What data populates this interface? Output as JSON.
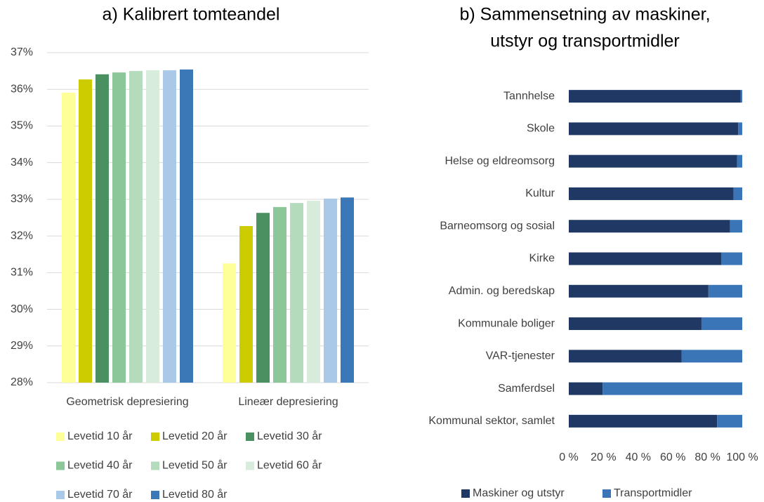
{
  "chart_data": [
    {
      "type": "bar",
      "title": "a) Kalibrert tomteandel",
      "categories": [
        "Geometrisk depresiering",
        "Lineær depresiering"
      ],
      "series": [
        {
          "name": "Levetid 10 år",
          "color": "#ffff99",
          "values": [
            35.91,
            31.25
          ]
        },
        {
          "name": "Levetid 20 år",
          "color": "#cccc00",
          "values": [
            36.27,
            32.27
          ]
        },
        {
          "name": "Levetid 30 år",
          "color": "#4a9060",
          "values": [
            36.41,
            32.63
          ]
        },
        {
          "name": "Levetid 40 år",
          "color": "#8cc79a",
          "values": [
            36.46,
            32.79
          ]
        },
        {
          "name": "Levetid 50 år",
          "color": "#b4dcbc",
          "values": [
            36.5,
            32.9
          ]
        },
        {
          "name": "Levetid 60 år",
          "color": "#d8ecdc",
          "values": [
            36.52,
            32.96
          ]
        },
        {
          "name": "Levetid 70 år",
          "color": "#aac8e8",
          "values": [
            36.52,
            33.02
          ]
        },
        {
          "name": "Levetid 80 år",
          "color": "#3a78b8",
          "values": [
            36.54,
            33.05
          ]
        }
      ],
      "ylim": [
        28,
        37
      ],
      "yticks": [
        {
          "value": 28,
          "label": "28%"
        },
        {
          "value": 29,
          "label": "29%"
        },
        {
          "value": 30,
          "label": "30%"
        },
        {
          "value": 31,
          "label": "31%"
        },
        {
          "value": 32,
          "label": "32%"
        },
        {
          "value": 33,
          "label": "33%"
        },
        {
          "value": 34,
          "label": "34%"
        },
        {
          "value": 35,
          "label": "35%"
        },
        {
          "value": 36,
          "label": "36%"
        },
        {
          "value": 37,
          "label": "37%"
        }
      ],
      "grid": true,
      "legend": "bottom"
    },
    {
      "type": "stacked_barh",
      "title": [
        "b) Sammensetning av maskiner,",
        "utstyr og transportmidler"
      ],
      "categories": [
        "Tannhelse",
        "Skole",
        "Helse og eldreomsorg",
        "Kultur",
        "Barneomsorg og sosial",
        "Kirke",
        "Admin. og beredskap",
        "Kommunale boliger",
        "VAR-tjenester",
        "Samferdsel",
        "Kommunal sektor, samlet"
      ],
      "series": [
        {
          "name": "Maskiner og utstyr",
          "color": "#1f3864",
          "values": [
            99,
            97.6,
            97,
            95,
            93,
            88,
            80.5,
            76.5,
            65,
            19.5,
            85.5
          ]
        },
        {
          "name": "Transportmidler",
          "color": "#3a75b8",
          "values": [
            1,
            2.4,
            3,
            5,
            7,
            12,
            19.5,
            23.5,
            35,
            80.5,
            14.5
          ]
        }
      ],
      "xlim": [
        0,
        100
      ],
      "xticks": [
        {
          "value": 0,
          "label": "0 %"
        },
        {
          "value": 20,
          "label": "20 %"
        },
        {
          "value": 40,
          "label": "40 %"
        },
        {
          "value": 60,
          "label": "60 %"
        },
        {
          "value": 80,
          "label": "80 %"
        },
        {
          "value": 100,
          "label": "100 %"
        }
      ],
      "grid": false,
      "legend": "bottom"
    }
  ]
}
